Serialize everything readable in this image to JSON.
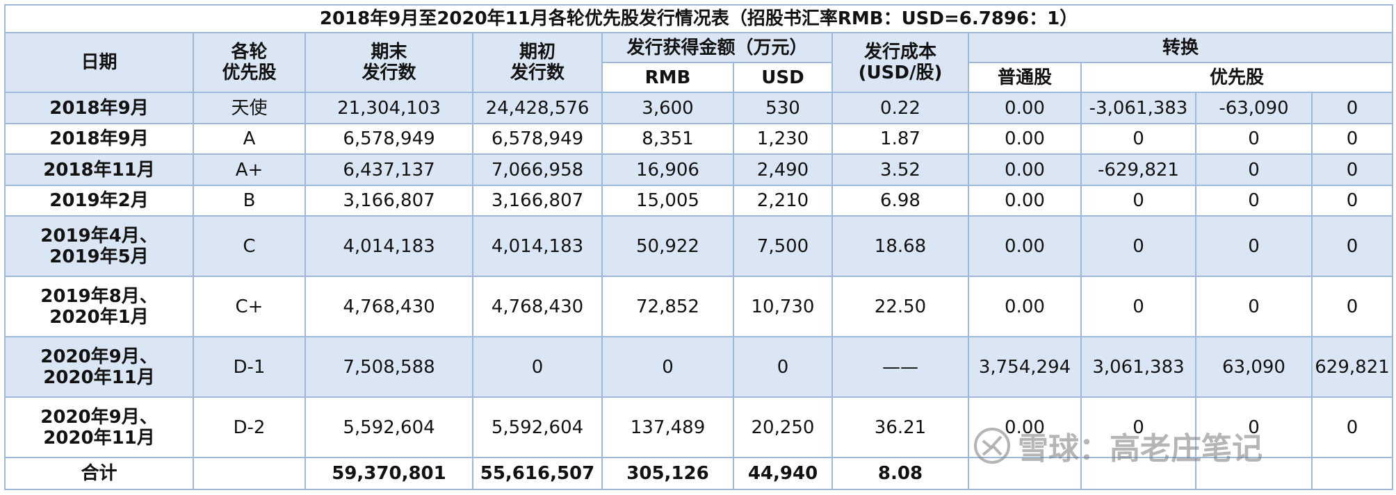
{
  "title": "2018年9月至2020年11月各轮优先股发行情况表（招股书汇率RMB：USD=6.7896：1）",
  "headers": {
    "date": "日期",
    "round": "各轮\n优先股",
    "end_shares": "期末\n发行数",
    "begin_shares": "期初\n发行数",
    "proceeds": "发行获得金额（万元）",
    "rmb": "RMB",
    "usd": "USD",
    "cost": "发行成本\n(USD/股)",
    "conversion": "转换",
    "common": "普通股",
    "preferred": "优先股"
  },
  "rows": [
    {
      "date": "2018年9月",
      "round": "天使",
      "end": "21,304,103",
      "begin": "24,428,576",
      "rmb": "3,600",
      "usd": "530",
      "cost": "0.22",
      "common": "0.00",
      "p1": "-3,061,383",
      "p2": "-63,090",
      "p3": "0"
    },
    {
      "date": "2018年9月",
      "round": "A",
      "end": "6,578,949",
      "begin": "6,578,949",
      "rmb": "8,351",
      "usd": "1,230",
      "cost": "1.87",
      "common": "0.00",
      "p1": "0",
      "p2": "0",
      "p3": "0"
    },
    {
      "date": "2018年11月",
      "round": "A+",
      "end": "6,437,137",
      "begin": "7,066,958",
      "rmb": "16,906",
      "usd": "2,490",
      "cost": "3.52",
      "common": "0.00",
      "p1": "-629,821",
      "p2": "0",
      "p3": "0"
    },
    {
      "date": "2019年2月",
      "round": "B",
      "end": "3,166,807",
      "begin": "3,166,807",
      "rmb": "15,005",
      "usd": "2,210",
      "cost": "6.98",
      "common": "0.00",
      "p1": "0",
      "p2": "0",
      "p3": "0"
    },
    {
      "date": "2019年4月、\n2019年5月",
      "round": "C",
      "end": "4,014,183",
      "begin": "4,014,183",
      "rmb": "50,922",
      "usd": "7,500",
      "cost": "18.68",
      "common": "0.00",
      "p1": "0",
      "p2": "0",
      "p3": "0"
    },
    {
      "date": "2019年8月、\n2020年1月",
      "round": "C+",
      "end": "4,768,430",
      "begin": "4,768,430",
      "rmb": "72,852",
      "usd": "10,730",
      "cost": "22.50",
      "common": "0.00",
      "p1": "0",
      "p2": "0",
      "p3": "0"
    },
    {
      "date": "2020年9月、\n2020年11月",
      "round": "D-1",
      "end": "7,508,588",
      "begin": "0",
      "rmb": "0",
      "usd": "0",
      "cost": "——",
      "common": "3,754,294",
      "p1": "3,061,383",
      "p2": "63,090",
      "p3": "629,821"
    },
    {
      "date": "2020年9月、\n2020年11月",
      "round": "D-2",
      "end": "5,592,604",
      "begin": "5,592,604",
      "rmb": "137,489",
      "usd": "20,250",
      "cost": "36.21",
      "common": "0.00",
      "p1": "0",
      "p2": "0",
      "p3": "0"
    }
  ],
  "total": {
    "label": "合计",
    "end": "59,370,801",
    "begin": "55,616,507",
    "rmb": "305,126",
    "usd": "44,940",
    "cost": "8.08"
  },
  "watermark": {
    "text": "雪球：高老庄笔记",
    "icon": "snowball-logo-icon"
  }
}
